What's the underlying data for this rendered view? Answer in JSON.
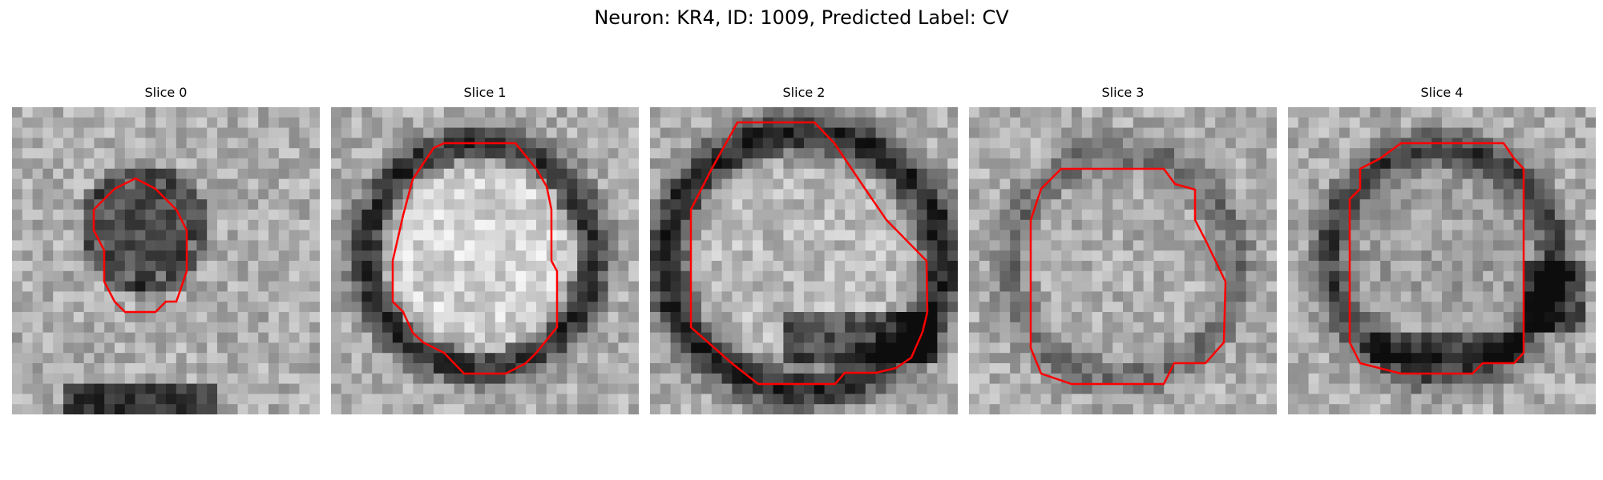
{
  "figure": {
    "title": "Neuron: KR4, ID: 1009, Predicted Label: CV"
  },
  "slices": [
    {
      "label": "Slice 0"
    },
    {
      "label": "Slice 1"
    },
    {
      "label": "Slice 2"
    },
    {
      "label": "Slice 3"
    },
    {
      "label": "Slice 4"
    }
  ],
  "colors": {
    "contour": "#ff0000",
    "background": "#ffffff"
  }
}
